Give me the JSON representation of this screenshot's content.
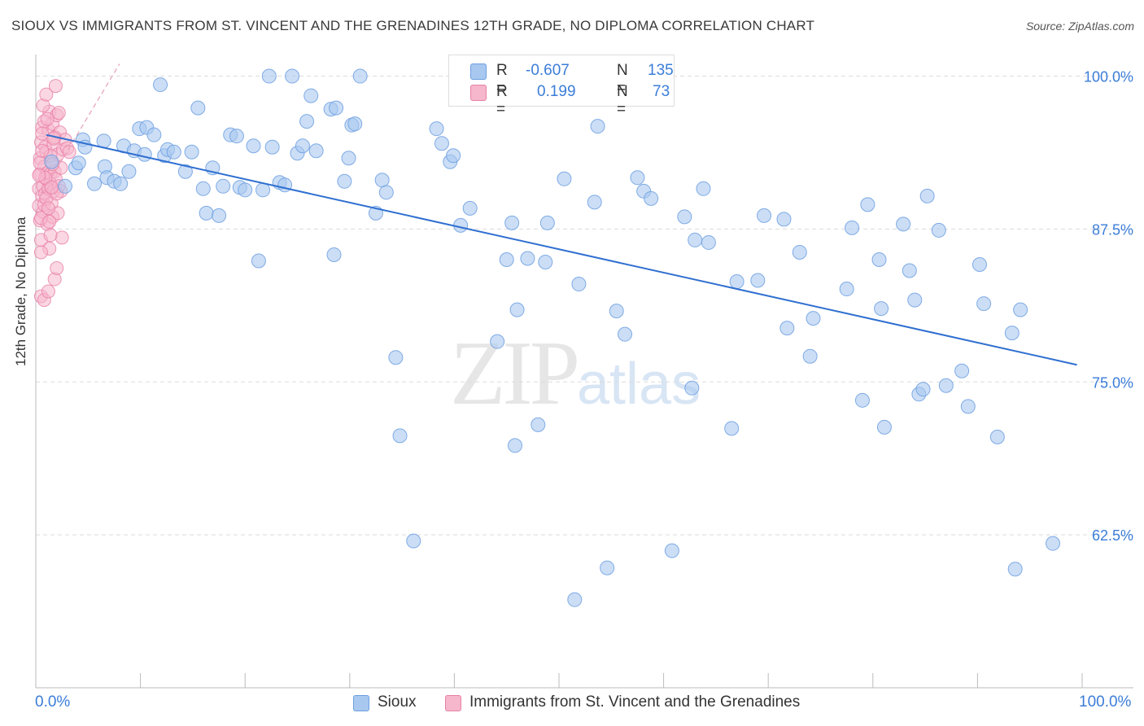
{
  "title": "SIOUX VS IMMIGRANTS FROM ST. VINCENT AND THE GRENADINES 12TH GRADE, NO DIPLOMA CORRELATION CHART",
  "source": "Source: ZipAtlas.com",
  "watermark": {
    "zip": "ZIP",
    "atlas": "atlas"
  },
  "legend": {
    "r_label": "R =",
    "n_label": "N =",
    "series1": {
      "r": "-0.607",
      "n": "135"
    },
    "series2": {
      "r": "0.199",
      "n": "73"
    }
  },
  "colors": {
    "blue_fill": "#a9c8f0",
    "blue_stroke": "#6d9fe0",
    "pink_fill": "#f6b6cc",
    "pink_stroke": "#e880a6",
    "trend_blue": "#2f6fd0",
    "trend_pink": "#e8a0b8",
    "tick_text": "#3b7dd8",
    "grid": "#dcdcdc"
  },
  "chart_data": {
    "type": "scatter",
    "title": "SIOUX VS IMMIGRANTS FROM ST. VINCENT AND THE GRENADINES 12TH GRADE, NO DIPLOMA CORRELATION CHART",
    "xlabel": "",
    "ylabel": "12th Grade, No Diploma",
    "xlim": [
      0,
      100
    ],
    "ylim": [
      50,
      101.5
    ],
    "x_tick_labels": [
      "0.0%",
      "100.0%"
    ],
    "y_ticks": [
      62.5,
      75.0,
      87.5,
      100.0
    ],
    "y_tick_labels": [
      "62.5%",
      "75.0%",
      "87.5%",
      "100.0%"
    ],
    "grid": true,
    "legend_position": "top-center",
    "series": [
      {
        "name": "Sioux",
        "trend": {
          "x": [
            1.0,
            99.5
          ],
          "y": [
            95.2,
            76.4
          ]
        },
        "points": [
          [
            1.5,
            93.0
          ],
          [
            2.8,
            91.0
          ],
          [
            3.8,
            92.5
          ],
          [
            4.1,
            92.9
          ],
          [
            4.5,
            94.8
          ],
          [
            4.7,
            94.2
          ],
          [
            5.6,
            91.2
          ],
          [
            6.5,
            94.7
          ],
          [
            6.6,
            92.6
          ],
          [
            6.8,
            91.7
          ],
          [
            7.5,
            91.4
          ],
          [
            8.1,
            91.2
          ],
          [
            8.4,
            94.3
          ],
          [
            8.9,
            92.2
          ],
          [
            9.4,
            93.9
          ],
          [
            9.9,
            95.7
          ],
          [
            10.4,
            93.6
          ],
          [
            10.6,
            95.8
          ],
          [
            11.3,
            95.2
          ],
          [
            11.9,
            99.3
          ],
          [
            12.3,
            93.5
          ],
          [
            12.6,
            94.0
          ],
          [
            13.2,
            93.8
          ],
          [
            14.3,
            92.2
          ],
          [
            14.9,
            93.8
          ],
          [
            15.5,
            97.4
          ],
          [
            16.0,
            90.8
          ],
          [
            16.3,
            88.8
          ],
          [
            16.9,
            92.5
          ],
          [
            17.5,
            88.6
          ],
          [
            17.9,
            91.0
          ],
          [
            18.6,
            95.2
          ],
          [
            19.2,
            95.1
          ],
          [
            19.5,
            90.9
          ],
          [
            20.0,
            90.7
          ],
          [
            20.8,
            94.3
          ],
          [
            21.3,
            84.9
          ],
          [
            21.7,
            90.7
          ],
          [
            22.3,
            100.0
          ],
          [
            22.6,
            94.2
          ],
          [
            23.3,
            91.3
          ],
          [
            23.8,
            91.1
          ],
          [
            24.5,
            100.0
          ],
          [
            25.0,
            93.7
          ],
          [
            25.5,
            94.3
          ],
          [
            25.9,
            96.3
          ],
          [
            26.3,
            98.4
          ],
          [
            26.8,
            93.9
          ],
          [
            28.2,
            97.3
          ],
          [
            28.5,
            85.4
          ],
          [
            28.7,
            97.4
          ],
          [
            29.5,
            91.4
          ],
          [
            29.9,
            93.3
          ],
          [
            30.2,
            96.0
          ],
          [
            30.5,
            96.1
          ],
          [
            31.0,
            100.0
          ],
          [
            32.5,
            88.8
          ],
          [
            33.1,
            91.5
          ],
          [
            33.5,
            90.5
          ],
          [
            34.4,
            77.0
          ],
          [
            34.8,
            70.6
          ],
          [
            36.1,
            62.0
          ],
          [
            38.3,
            95.7
          ],
          [
            38.8,
            94.5
          ],
          [
            39.6,
            93.0
          ],
          [
            39.9,
            93.5
          ],
          [
            40.6,
            87.8
          ],
          [
            41.5,
            89.2
          ],
          [
            43.2,
            100.0
          ],
          [
            44.1,
            78.3
          ],
          [
            45.0,
            85.0
          ],
          [
            45.5,
            88.0
          ],
          [
            45.8,
            69.8
          ],
          [
            46.0,
            80.9
          ],
          [
            47.0,
            85.1
          ],
          [
            48.0,
            71.5
          ],
          [
            48.7,
            84.8
          ],
          [
            48.9,
            88.0
          ],
          [
            50.5,
            91.6
          ],
          [
            51.5,
            57.2
          ],
          [
            51.9,
            83.0
          ],
          [
            53.4,
            89.7
          ],
          [
            53.7,
            95.9
          ],
          [
            54.6,
            59.8
          ],
          [
            55.5,
            80.8
          ],
          [
            56.3,
            78.9
          ],
          [
            57.5,
            91.7
          ],
          [
            58.1,
            90.6
          ],
          [
            58.8,
            90.0
          ],
          [
            59.2,
            100.0
          ],
          [
            60.8,
            61.2
          ],
          [
            62.0,
            88.5
          ],
          [
            62.7,
            74.5
          ],
          [
            63.0,
            86.6
          ],
          [
            63.8,
            90.8
          ],
          [
            64.3,
            86.4
          ],
          [
            66.5,
            71.2
          ],
          [
            67.0,
            83.2
          ],
          [
            69.0,
            83.3
          ],
          [
            69.6,
            88.6
          ],
          [
            71.5,
            88.3
          ],
          [
            71.8,
            79.4
          ],
          [
            73.0,
            85.6
          ],
          [
            74.0,
            77.1
          ],
          [
            74.3,
            80.2
          ],
          [
            77.5,
            82.6
          ],
          [
            78.0,
            87.6
          ],
          [
            79.0,
            73.5
          ],
          [
            79.5,
            89.5
          ],
          [
            80.6,
            85.0
          ],
          [
            80.8,
            81.0
          ],
          [
            81.1,
            71.3
          ],
          [
            82.9,
            87.9
          ],
          [
            83.5,
            84.1
          ],
          [
            84.0,
            81.7
          ],
          [
            84.4,
            74.0
          ],
          [
            84.8,
            74.4
          ],
          [
            85.2,
            90.2
          ],
          [
            86.3,
            87.4
          ],
          [
            87.0,
            74.7
          ],
          [
            88.5,
            75.9
          ],
          [
            89.1,
            73.0
          ],
          [
            90.2,
            84.6
          ],
          [
            90.6,
            81.4
          ],
          [
            91.9,
            70.5
          ],
          [
            93.3,
            79.0
          ],
          [
            93.6,
            59.7
          ],
          [
            94.1,
            80.9
          ],
          [
            97.2,
            61.8
          ]
        ]
      },
      {
        "name": "Immigrants from St. Vincent and the Grenadines",
        "trend": {
          "x": [
            0.3,
            8.0
          ],
          "y": [
            90.0,
            101.0
          ]
        },
        "points": [
          [
            0.3,
            89.4
          ],
          [
            0.3,
            90.8
          ],
          [
            0.4,
            88.2
          ],
          [
            0.4,
            92.0
          ],
          [
            0.4,
            93.3
          ],
          [
            0.5,
            94.6
          ],
          [
            0.5,
            86.6
          ],
          [
            0.5,
            82.0
          ],
          [
            0.6,
            90.2
          ],
          [
            0.6,
            95.8
          ],
          [
            0.7,
            91.0
          ],
          [
            0.7,
            88.9
          ],
          [
            0.8,
            92.6
          ],
          [
            0.8,
            89.5
          ],
          [
            0.9,
            94.2
          ],
          [
            0.9,
            90.4
          ],
          [
            1.0,
            93.8
          ],
          [
            1.0,
            91.6
          ],
          [
            1.1,
            87.9
          ],
          [
            1.1,
            92.1
          ],
          [
            1.2,
            90.8
          ],
          [
            1.2,
            95.6
          ],
          [
            1.3,
            97.1
          ],
          [
            1.3,
            85.9
          ],
          [
            1.4,
            92.0
          ],
          [
            1.4,
            91.2
          ],
          [
            1.5,
            89.6
          ],
          [
            1.5,
            93.0
          ],
          [
            1.6,
            88.5
          ],
          [
            1.6,
            96.1
          ],
          [
            1.7,
            90.6
          ],
          [
            1.7,
            94.4
          ],
          [
            1.8,
            92.2
          ],
          [
            1.8,
            83.4
          ],
          [
            1.9,
            91.6
          ],
          [
            1.9,
            99.2
          ],
          [
            2.0,
            96.8
          ],
          [
            2.0,
            84.3
          ],
          [
            2.1,
            93.6
          ],
          [
            2.1,
            88.8
          ],
          [
            2.2,
            91.0
          ],
          [
            2.2,
            97.0
          ],
          [
            2.3,
            95.4
          ],
          [
            2.4,
            92.5
          ],
          [
            2.4,
            90.6
          ],
          [
            2.5,
            86.8
          ],
          [
            2.6,
            94.0
          ],
          [
            2.8,
            94.8
          ],
          [
            3.0,
            94.1
          ],
          [
            3.2,
            93.8
          ],
          [
            0.4,
            92.9
          ],
          [
            0.5,
            88.4
          ],
          [
            0.7,
            97.6
          ],
          [
            0.8,
            96.3
          ],
          [
            1.0,
            90.0
          ],
          [
            1.2,
            89.2
          ],
          [
            1.4,
            93.5
          ],
          [
            1.6,
            92.8
          ],
          [
            1.8,
            95.0
          ],
          [
            2.0,
            90.4
          ],
          [
            0.6,
            93.9
          ],
          [
            0.9,
            91.7
          ],
          [
            1.1,
            96.5
          ],
          [
            1.3,
            88.1
          ],
          [
            1.5,
            90.9
          ],
          [
            1.7,
            94.9
          ],
          [
            0.5,
            85.6
          ],
          [
            0.8,
            81.7
          ],
          [
            1.0,
            98.5
          ],
          [
            1.2,
            82.4
          ],
          [
            1.4,
            87.0
          ],
          [
            0.3,
            91.9
          ],
          [
            0.6,
            95.3
          ]
        ]
      }
    ]
  },
  "bottom_legend": {
    "series1": "Sioux",
    "series2": "Immigrants from St. Vincent and the Grenadines"
  }
}
